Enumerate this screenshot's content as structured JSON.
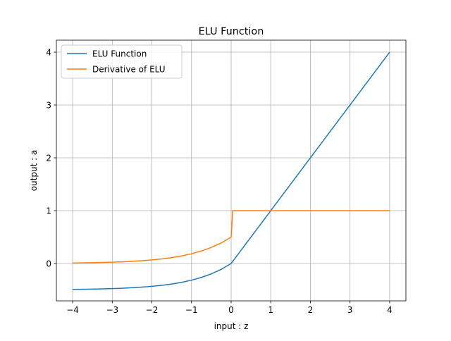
{
  "chart_data": {
    "type": "line",
    "title": "ELU Function",
    "xlabel": "input : z",
    "ylabel": "output : a",
    "xlim": [
      -4.41,
      4.41
    ],
    "ylim": [
      -0.707,
      4.227
    ],
    "xticks": [
      -4,
      -3,
      -2,
      -1,
      0,
      1,
      2,
      3,
      4
    ],
    "xtick_labels": [
      "−4",
      "−3",
      "−2",
      "−1",
      "0",
      "1",
      "2",
      "3",
      "4"
    ],
    "yticks": [
      0,
      1,
      2,
      3,
      4
    ],
    "ytick_labels": [
      "0",
      "1",
      "2",
      "3",
      "4"
    ],
    "grid": true,
    "legend_position": "upper-left",
    "series": [
      {
        "name": "ELU Function",
        "color": "#1f77b4",
        "x": [
          -4,
          -3.75,
          -3.5,
          -3.25,
          -3,
          -2.75,
          -2.5,
          -2.25,
          -2,
          -1.75,
          -1.5,
          -1.25,
          -1,
          -0.75,
          -0.5,
          -0.25,
          0,
          4
        ],
        "y": [
          -0.4908,
          -0.4882,
          -0.4849,
          -0.4806,
          -0.4751,
          -0.468,
          -0.459,
          -0.4473,
          -0.4323,
          -0.4131,
          -0.3884,
          -0.3567,
          -0.3161,
          -0.2638,
          -0.1967,
          -0.1106,
          0,
          4
        ]
      },
      {
        "name": "Derivative of ELU",
        "color": "#ff7f0e",
        "x": [
          -4,
          -3.75,
          -3.5,
          -3.25,
          -3,
          -2.75,
          -2.5,
          -2.25,
          -2,
          -1.75,
          -1.5,
          -1.25,
          -1,
          -0.75,
          -0.5,
          -0.25,
          0,
          0.04,
          4
        ],
        "y": [
          0.0092,
          0.0118,
          0.0151,
          0.0194,
          0.0249,
          0.032,
          0.041,
          0.0527,
          0.0677,
          0.0869,
          0.1116,
          0.1433,
          0.1839,
          0.2362,
          0.3033,
          0.3894,
          0.5,
          1,
          1
        ]
      }
    ]
  }
}
